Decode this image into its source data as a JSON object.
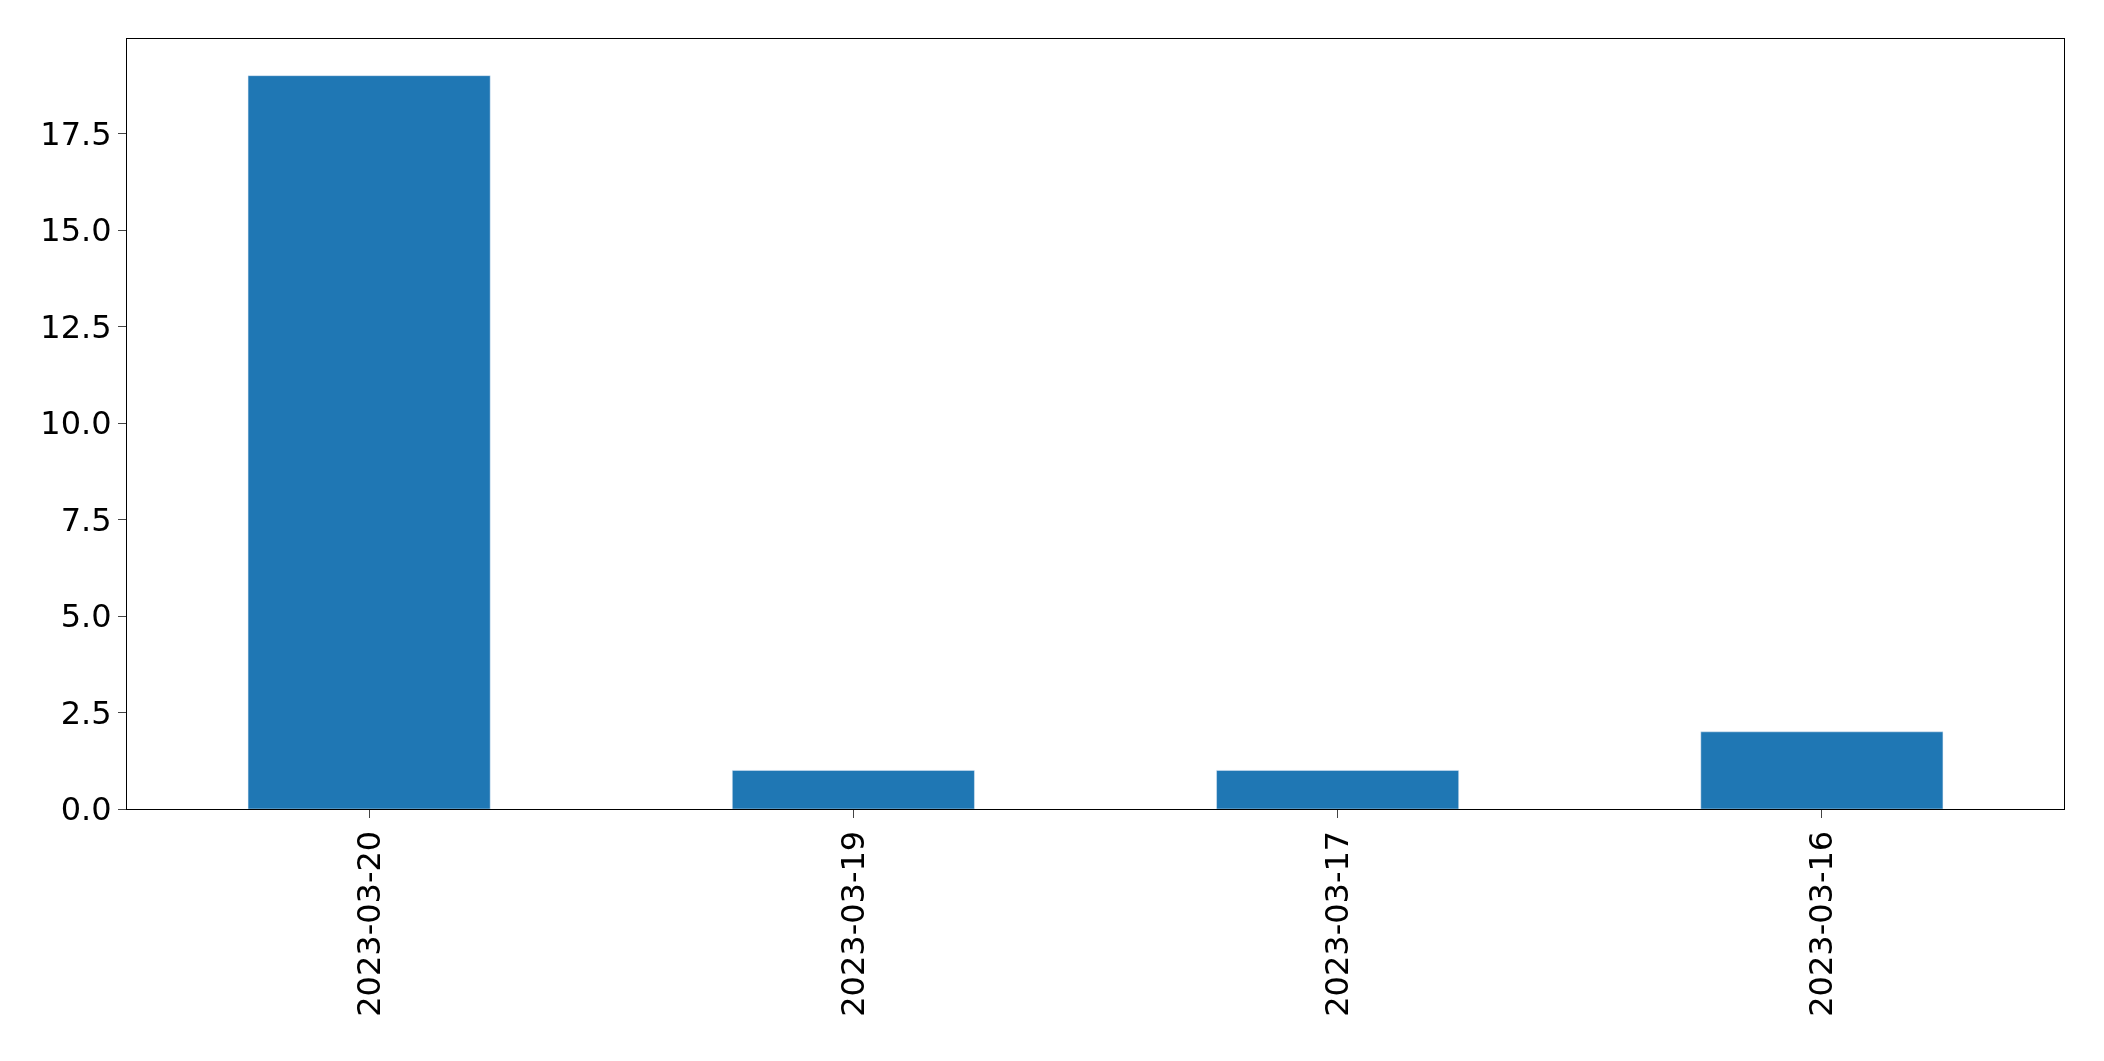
{
  "chart_data": {
    "type": "bar",
    "categories": [
      "2023-03-20",
      "2023-03-19",
      "2023-03-17",
      "2023-03-16"
    ],
    "values": [
      19,
      1,
      1,
      2
    ],
    "color": "#1f77b4",
    "ylim": [
      0,
      19.95
    ],
    "yticks": [
      {
        "value": 0,
        "label": "0.0"
      },
      {
        "value": 2.5,
        "label": "2.5"
      },
      {
        "value": 5,
        "label": "5.0"
      },
      {
        "value": 7.5,
        "label": "7.5"
      },
      {
        "value": 10,
        "label": "10.0"
      },
      {
        "value": 12.5,
        "label": "12.5"
      },
      {
        "value": 15,
        "label": "15.0"
      },
      {
        "value": 17.5,
        "label": "17.5"
      }
    ],
    "grid": false,
    "legend": false
  }
}
